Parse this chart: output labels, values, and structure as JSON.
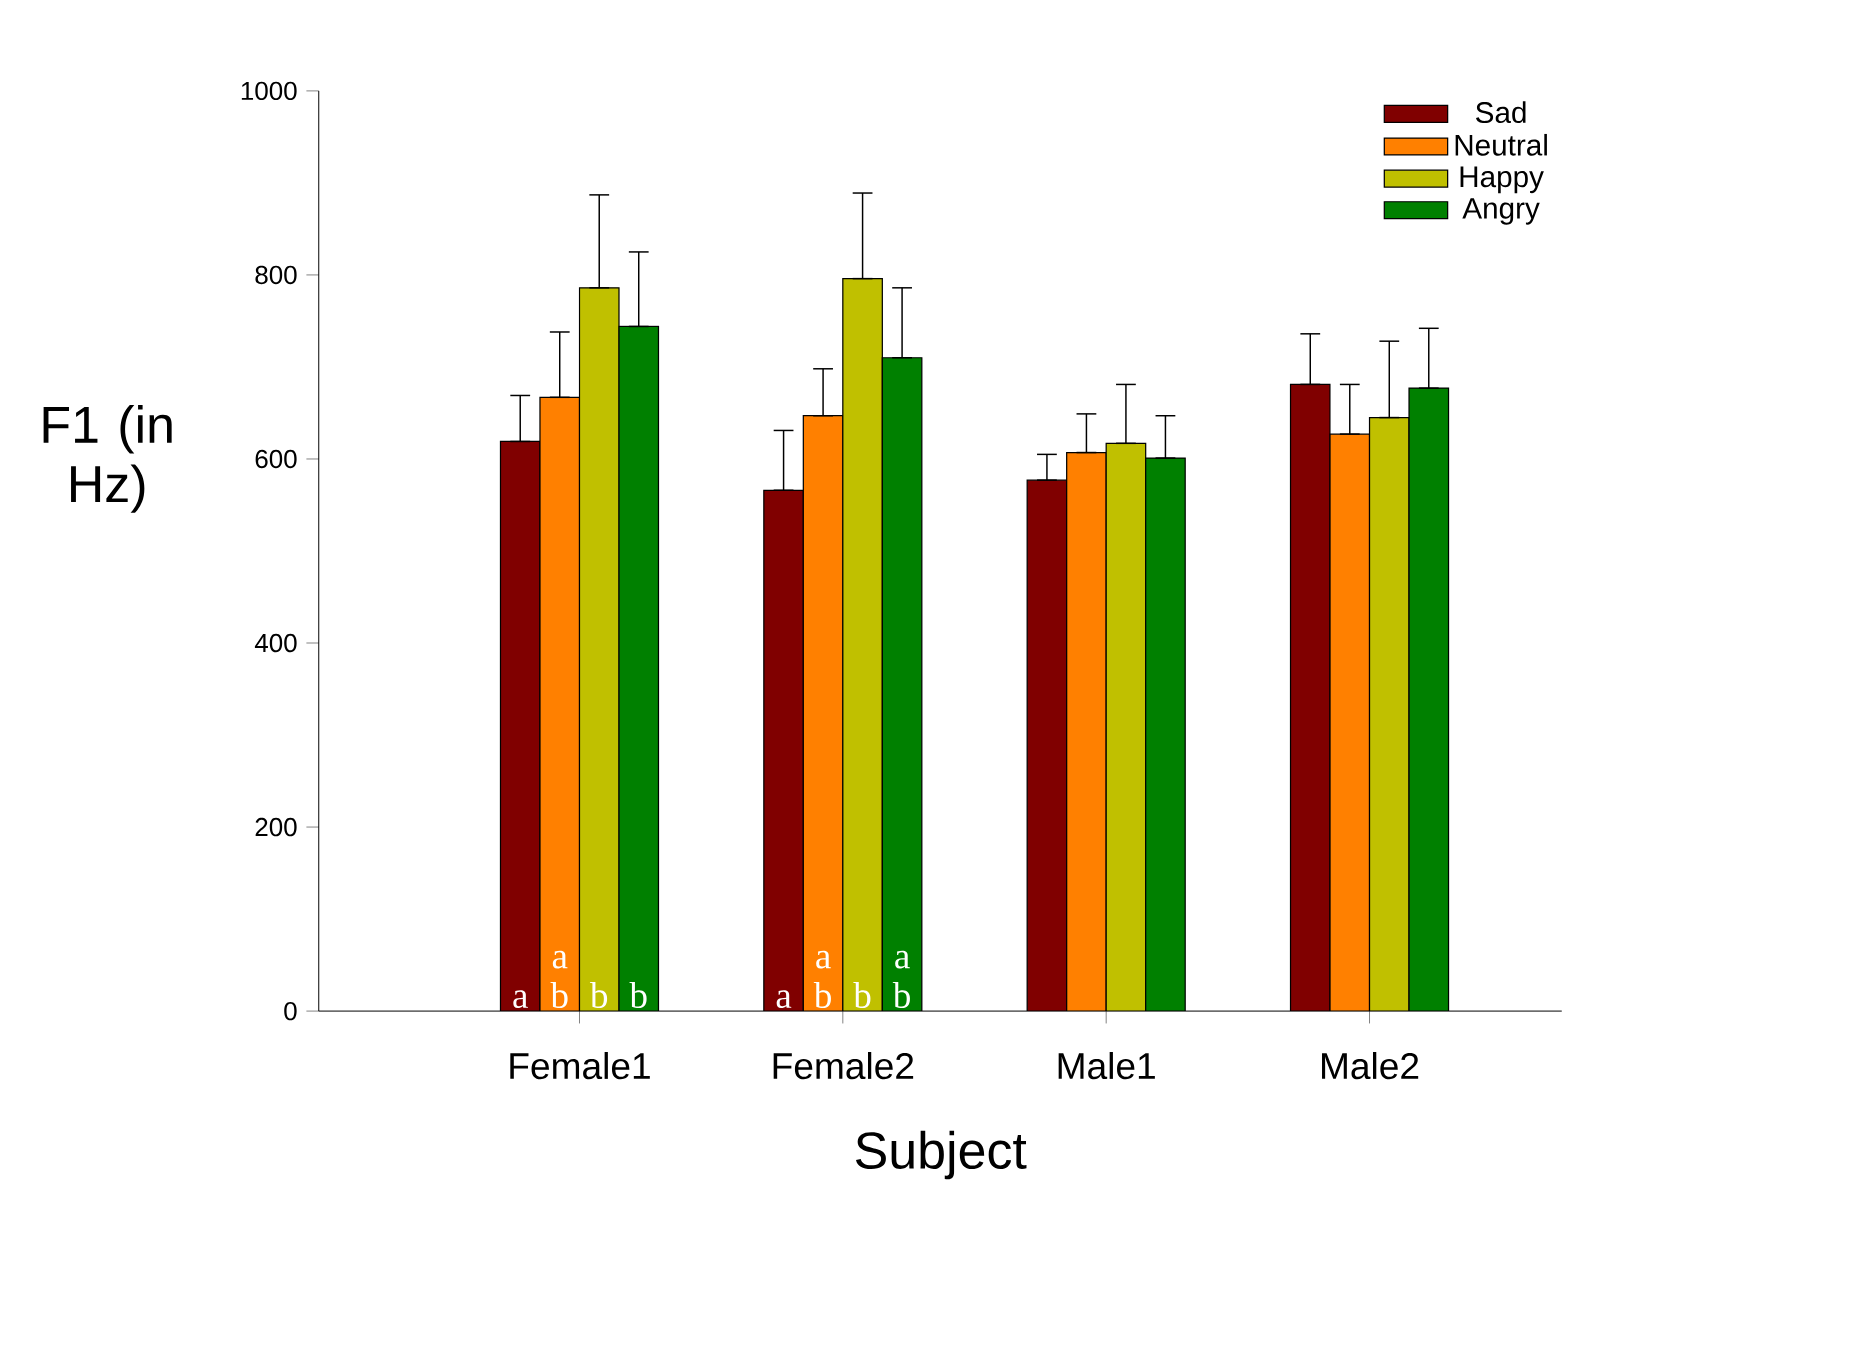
{
  "chart_data": {
    "type": "bar",
    "xlabel": "Subject",
    "ylabel": "F1 (in Hz)",
    "categories": [
      "Female1",
      "Female2",
      "Male1",
      "Male2"
    ],
    "ylim": [
      0,
      1000
    ],
    "yticks": [
      0,
      200,
      400,
      600,
      800,
      1000
    ],
    "legend": "top right",
    "grid": false,
    "series": [
      {
        "name": "Sad",
        "color": "#800000",
        "values": [
          619,
          566,
          577,
          681
        ],
        "errors": [
          [
            619,
            669
          ],
          [
            566,
            631
          ],
          [
            577,
            605
          ],
          [
            681,
            736
          ]
        ],
        "value_labels": [
          "a",
          "a",
          null,
          null
        ]
      },
      {
        "name": "Neutral",
        "color": "#ff8000",
        "values": [
          667,
          647,
          607,
          627
        ],
        "errors": [
          [
            667,
            738
          ],
          [
            647,
            698
          ],
          [
            607,
            649
          ],
          [
            627,
            681
          ]
        ],
        "value_labels": [
          "a b",
          "a b",
          null,
          null
        ]
      },
      {
        "name": "Happy",
        "color": "#c0c000",
        "values": [
          786,
          796,
          617,
          645
        ],
        "errors": [
          [
            786,
            887
          ],
          [
            796,
            889
          ],
          [
            617,
            681
          ],
          [
            645,
            728
          ]
        ],
        "value_labels": [
          "b",
          "b",
          null,
          null
        ]
      },
      {
        "name": "Angry",
        "color": "#008000",
        "values": [
          744,
          710,
          601,
          677
        ],
        "errors": [
          [
            744,
            825
          ],
          [
            710,
            786
          ],
          [
            601,
            647
          ],
          [
            677,
            742
          ]
        ],
        "value_labels": [
          "b",
          "a b",
          null,
          null
        ]
      }
    ]
  }
}
